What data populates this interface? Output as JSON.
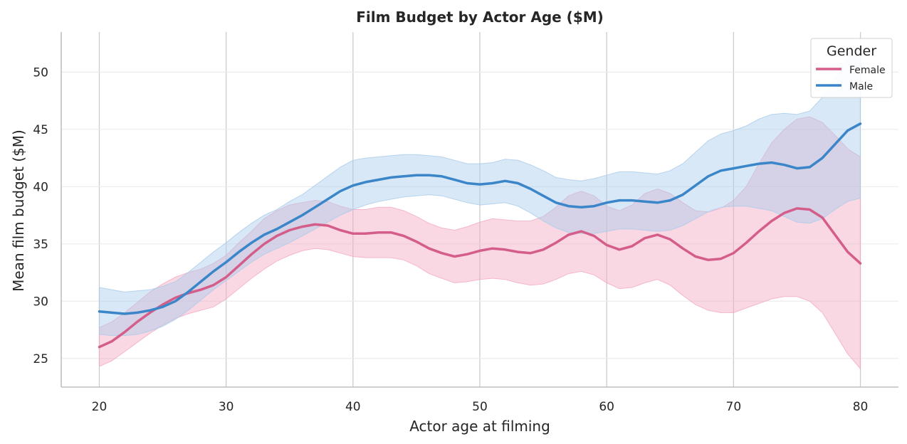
{
  "chart_data": {
    "type": "line",
    "title": "Film Budget by Actor Age ($M)",
    "xlabel": "Actor age at filming",
    "ylabel": "Mean film budget ($M)",
    "xlim": [
      17,
      83
    ],
    "ylim": [
      22.5,
      53.5
    ],
    "x_ticks": [
      20,
      30,
      40,
      50,
      60,
      70,
      80
    ],
    "y_ticks": [
      25,
      30,
      35,
      40,
      45,
      50
    ],
    "grid": true,
    "legend": {
      "title": "Gender",
      "placement": "top-right"
    },
    "x": [
      20,
      21,
      22,
      23,
      24,
      25,
      26,
      27,
      28,
      29,
      30,
      31,
      32,
      33,
      34,
      35,
      36,
      37,
      38,
      39,
      40,
      41,
      42,
      43,
      44,
      45,
      46,
      47,
      48,
      49,
      50,
      51,
      52,
      53,
      54,
      55,
      56,
      57,
      58,
      59,
      60,
      61,
      62,
      63,
      64,
      65,
      66,
      67,
      68,
      69,
      70,
      71,
      72,
      73,
      74,
      75,
      76,
      77,
      78,
      79,
      80
    ],
    "series": [
      {
        "name": "Female",
        "color": "#d45d8a",
        "band_color": "#f2a9c3",
        "values": [
          26.0,
          26.5,
          27.3,
          28.2,
          29.0,
          29.7,
          30.3,
          30.7,
          31.0,
          31.4,
          32.1,
          33.1,
          34.1,
          35.0,
          35.7,
          36.2,
          36.5,
          36.7,
          36.6,
          36.2,
          35.9,
          35.9,
          36.0,
          36.0,
          35.7,
          35.2,
          34.6,
          34.2,
          33.9,
          34.1,
          34.4,
          34.6,
          34.5,
          34.3,
          34.2,
          34.5,
          35.1,
          35.8,
          36.1,
          35.7,
          34.9,
          34.5,
          34.8,
          35.5,
          35.8,
          35.4,
          34.6,
          33.9,
          33.6,
          33.7,
          34.2,
          35.1,
          36.1,
          37.0,
          37.7,
          38.1,
          38.0,
          37.3,
          35.8,
          34.3,
          33.3
        ],
        "lower": [
          24.3,
          24.8,
          25.6,
          26.4,
          27.2,
          27.9,
          28.5,
          28.9,
          29.2,
          29.5,
          30.2,
          31.1,
          32.0,
          32.8,
          33.5,
          34.0,
          34.4,
          34.6,
          34.5,
          34.2,
          33.9,
          33.8,
          33.8,
          33.8,
          33.6,
          33.1,
          32.4,
          32.0,
          31.6,
          31.7,
          31.9,
          32.0,
          31.9,
          31.6,
          31.4,
          31.5,
          31.9,
          32.4,
          32.6,
          32.3,
          31.6,
          31.1,
          31.2,
          31.6,
          31.9,
          31.4,
          30.5,
          29.7,
          29.2,
          29.0,
          29.0,
          29.4,
          29.8,
          30.2,
          30.4,
          30.4,
          30.0,
          29.0,
          27.2,
          25.4,
          24.1
        ],
        "upper": [
          27.7,
          28.2,
          29.0,
          29.9,
          30.8,
          31.5,
          32.1,
          32.5,
          32.8,
          33.3,
          34.0,
          35.1,
          36.1,
          37.2,
          37.9,
          38.4,
          38.6,
          38.8,
          38.7,
          38.3,
          38.0,
          38.0,
          38.2,
          38.2,
          37.9,
          37.4,
          36.8,
          36.4,
          36.2,
          36.5,
          36.9,
          37.2,
          37.1,
          37.0,
          37.0,
          37.4,
          38.2,
          39.2,
          39.6,
          39.2,
          38.3,
          37.9,
          38.4,
          39.4,
          39.8,
          39.4,
          38.6,
          37.9,
          37.8,
          38.1,
          38.8,
          40.0,
          42.0,
          43.8,
          45.0,
          45.9,
          46.1,
          45.6,
          44.5,
          43.3,
          42.6
        ]
      },
      {
        "name": "Male",
        "color": "#3a86c8",
        "band_color": "#a9cbea",
        "values": [
          29.1,
          29.0,
          28.9,
          29.0,
          29.2,
          29.5,
          30.0,
          30.8,
          31.7,
          32.6,
          33.4,
          34.3,
          35.1,
          35.8,
          36.3,
          36.9,
          37.5,
          38.2,
          38.9,
          39.6,
          40.1,
          40.4,
          40.6,
          40.8,
          40.9,
          41.0,
          41.0,
          40.9,
          40.6,
          40.3,
          40.2,
          40.3,
          40.5,
          40.3,
          39.8,
          39.2,
          38.6,
          38.3,
          38.2,
          38.3,
          38.6,
          38.8,
          38.8,
          38.7,
          38.6,
          38.8,
          39.3,
          40.1,
          40.9,
          41.4,
          41.6,
          41.8,
          42.0,
          42.1,
          41.9,
          41.6,
          41.7,
          42.5,
          43.7,
          44.9,
          45.5
        ],
        "lower": [
          27.1,
          27.0,
          27.0,
          27.1,
          27.4,
          27.8,
          28.4,
          29.2,
          30.1,
          31.0,
          31.8,
          32.6,
          33.4,
          34.1,
          34.6,
          35.1,
          35.7,
          36.3,
          36.9,
          37.5,
          38.0,
          38.4,
          38.7,
          38.9,
          39.1,
          39.2,
          39.3,
          39.2,
          38.9,
          38.6,
          38.4,
          38.5,
          38.6,
          38.3,
          37.7,
          37.0,
          36.4,
          36.0,
          35.9,
          35.9,
          36.1,
          36.3,
          36.3,
          36.2,
          36.1,
          36.2,
          36.6,
          37.2,
          37.8,
          38.2,
          38.3,
          38.3,
          38.1,
          37.9,
          37.4,
          36.9,
          36.8,
          37.2,
          38.0,
          38.7,
          39.0
        ],
        "upper": [
          31.2,
          31.0,
          30.8,
          30.9,
          31.0,
          31.3,
          31.7,
          32.5,
          33.4,
          34.3,
          35.1,
          36.0,
          36.8,
          37.5,
          38.0,
          38.7,
          39.3,
          40.1,
          40.9,
          41.7,
          42.3,
          42.5,
          42.6,
          42.7,
          42.8,
          42.8,
          42.7,
          42.6,
          42.3,
          42.0,
          42.0,
          42.1,
          42.4,
          42.3,
          41.9,
          41.4,
          40.8,
          40.6,
          40.5,
          40.7,
          41.0,
          41.3,
          41.3,
          41.2,
          41.1,
          41.4,
          42.0,
          43.0,
          44.0,
          44.6,
          44.9,
          45.3,
          45.9,
          46.3,
          46.4,
          46.3,
          46.6,
          47.8,
          49.4,
          51.1,
          52.0
        ]
      }
    ]
  }
}
